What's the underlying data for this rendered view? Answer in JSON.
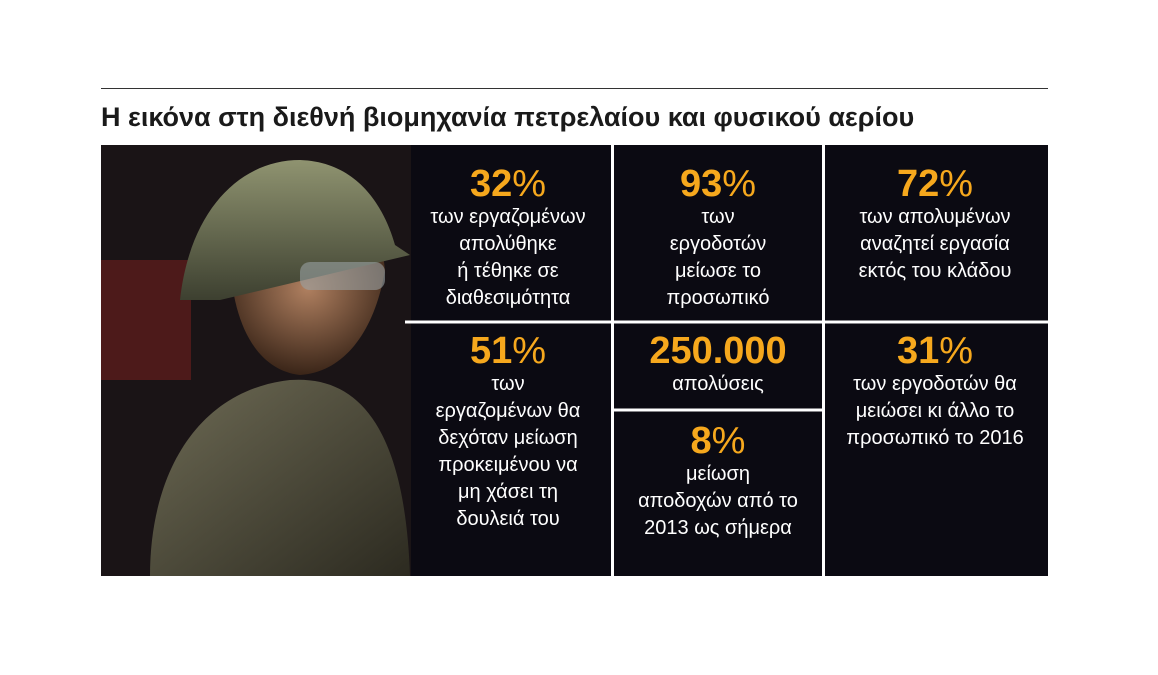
{
  "title": "Η εικόνα στη διεθνή βιομηχανία πετρελαίου και φυσικού αερίου",
  "cells": [
    {
      "number": "32",
      "unit": "%",
      "lines": [
        "των εργαζομένων",
        "απολύθηκε",
        "ή τέθηκε σε",
        "διαθεσιμότητα"
      ]
    },
    {
      "number": "93",
      "unit": "%",
      "lines": [
        "των",
        "εργοδοτών",
        "μείωσε το",
        "προσωπικό"
      ]
    },
    {
      "number": "72",
      "unit": "%",
      "lines": [
        "των απολυμένων",
        "αναζητεί εργασία",
        "εκτός του κλάδου"
      ]
    },
    {
      "number": "51",
      "unit": "%",
      "lines": [
        "των",
        "εργαζομένων θα",
        "δεχόταν μείωση",
        "προκειμένου να",
        "μη χάσει τη",
        "δουλειά του"
      ]
    },
    {
      "number": "250.000",
      "lines": [
        "απολύσεις"
      ]
    },
    {
      "number": "8",
      "unit": "%",
      "lines": [
        "μείωση",
        "αποδοχών από το",
        "2013 ως σήμερα"
      ]
    },
    {
      "number": "31",
      "unit": "%",
      "lines": [
        "των εργοδοτών θα",
        "μειώσει κι άλλο το",
        "προσωπικό το 2016"
      ]
    }
  ]
}
